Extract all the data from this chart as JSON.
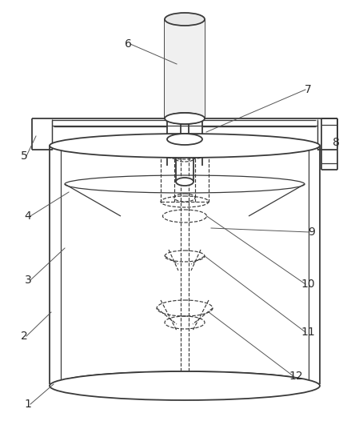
{
  "bg_color": "#ffffff",
  "lc": "#3a3a3a",
  "dc": "#3a3a3a",
  "figsize": [
    4.54,
    5.51
  ],
  "dpi": 100,
  "label_fs": 10,
  "label_color": "#2a2a2a",
  "anno_lw": 0.7,
  "anno_color": "#555555"
}
